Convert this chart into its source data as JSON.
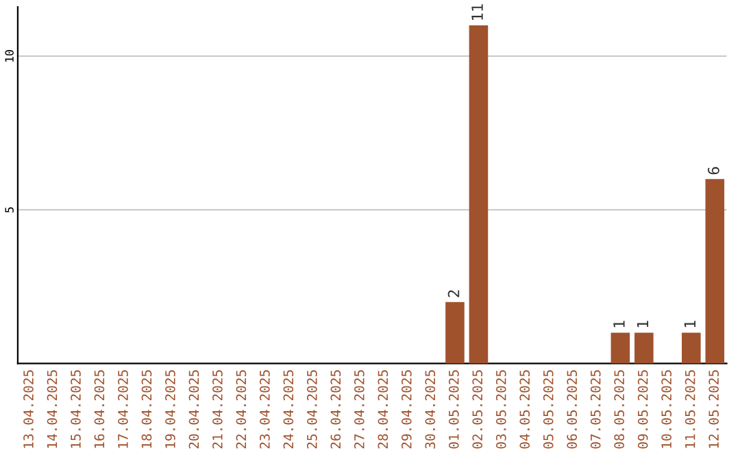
{
  "chart_data": {
    "type": "bar",
    "categories": [
      "13.04.2025",
      "14.04.2025",
      "15.04.2025",
      "16.04.2025",
      "17.04.2025",
      "18.04.2025",
      "19.04.2025",
      "20.04.2025",
      "21.04.2025",
      "22.04.2025",
      "23.04.2025",
      "24.04.2025",
      "25.04.2025",
      "26.04.2025",
      "27.04.2025",
      "28.04.2025",
      "29.04.2025",
      "30.04.2025",
      "01.05.2025",
      "02.05.2025",
      "03.05.2025",
      "04.05.2025",
      "05.05.2025",
      "06.05.2025",
      "07.05.2025",
      "08.05.2025",
      "09.05.2025",
      "10.05.2025",
      "11.05.2025",
      "12.05.2025"
    ],
    "values": [
      0,
      0,
      0,
      0,
      0,
      0,
      0,
      0,
      0,
      0,
      0,
      0,
      0,
      0,
      0,
      0,
      0,
      0,
      2,
      11,
      0,
      0,
      0,
      0,
      0,
      1,
      1,
      0,
      1,
      6
    ],
    "value_labels": [
      null,
      null,
      null,
      null,
      null,
      null,
      null,
      null,
      null,
      null,
      null,
      null,
      null,
      null,
      null,
      null,
      null,
      null,
      "2",
      "11",
      null,
      null,
      null,
      null,
      null,
      "1",
      "1",
      null,
      "1",
      "6"
    ],
    "color": "#a0522d",
    "ylim": [
      0,
      11.6
    ],
    "yticks": [
      5,
      10
    ],
    "grid": "y"
  }
}
